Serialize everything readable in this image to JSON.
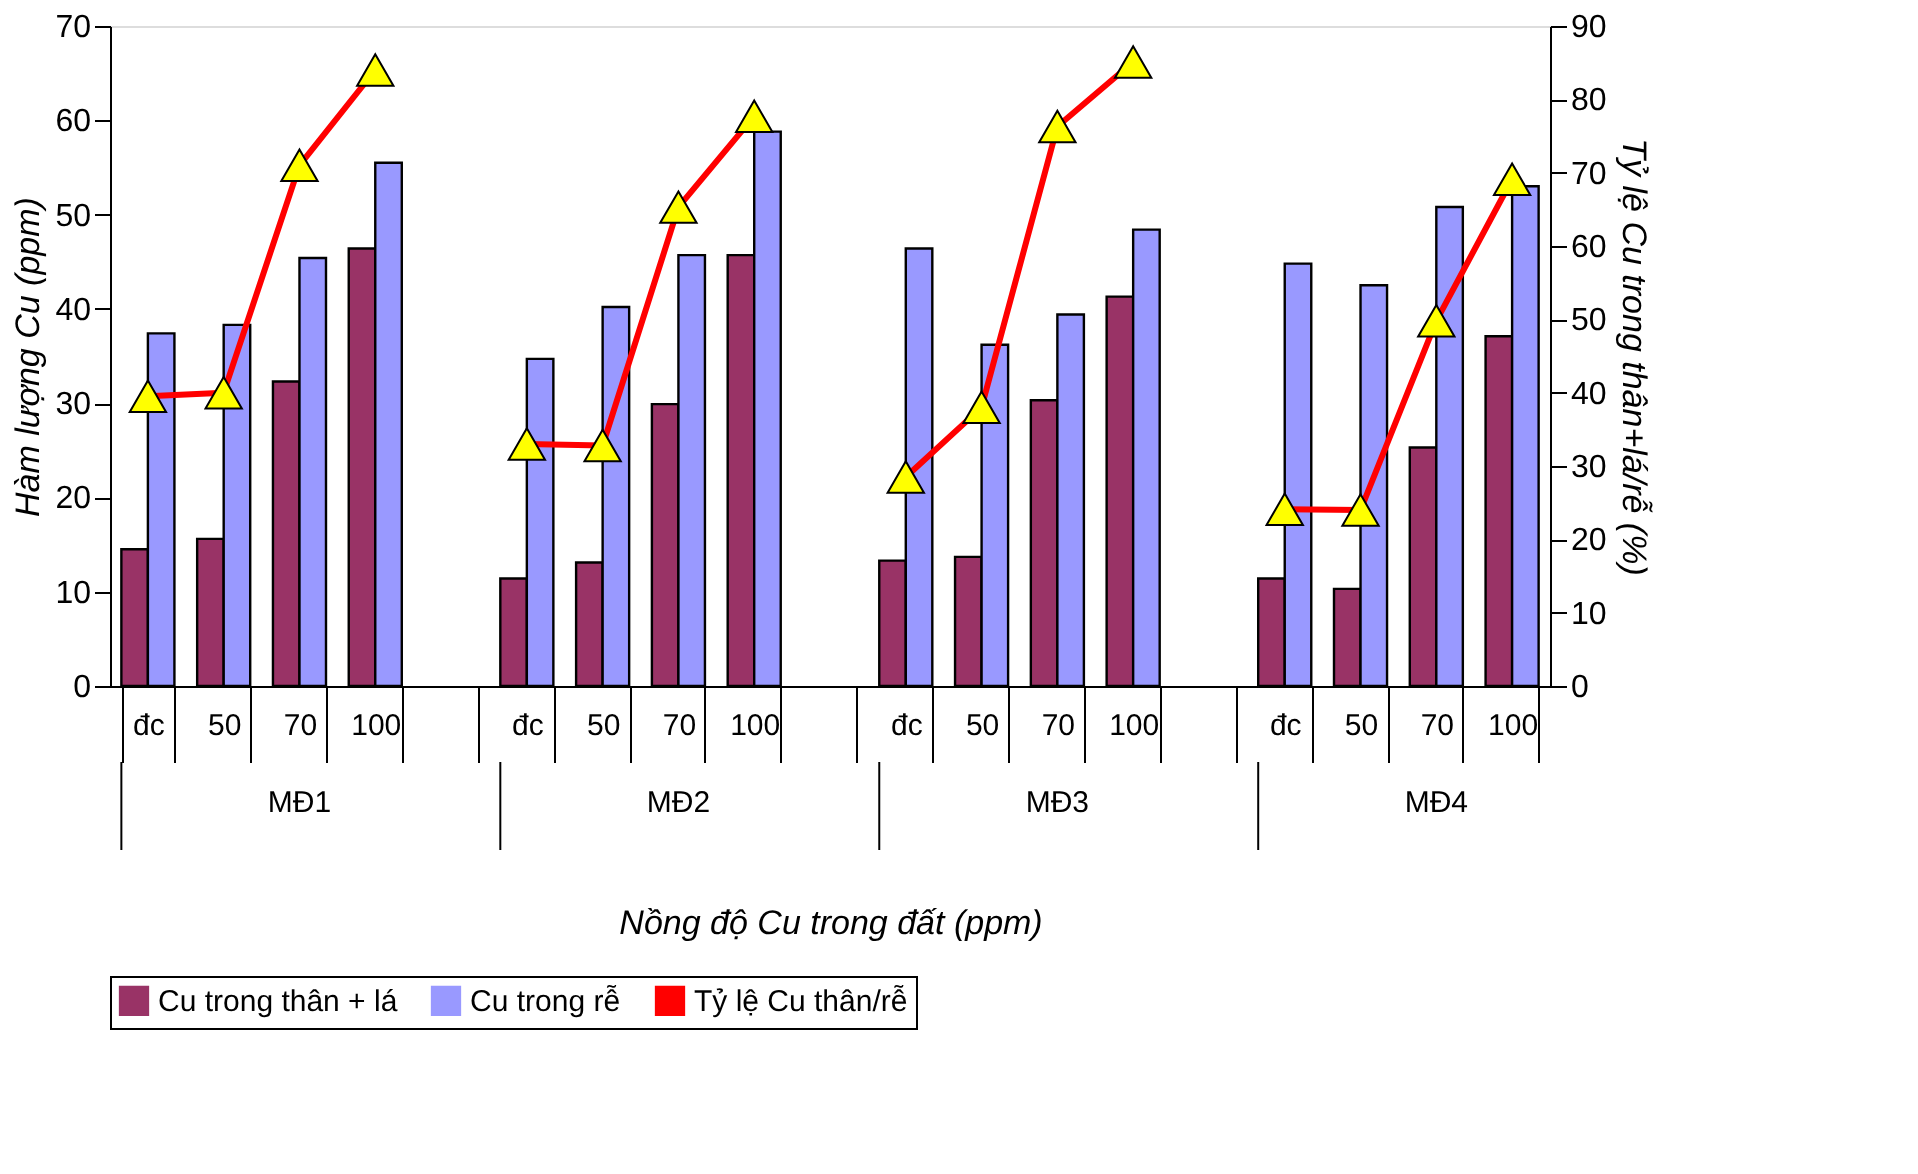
{
  "chart_data": {
    "type": "bar",
    "xlabel": "Nồng độ Cu trong đất (ppm)",
    "ylabel": "Hàm lượng Cu (ppm)",
    "y2label": "Tỷ lệ Cu trong thân+lá/rễ (%)",
    "categories": [
      "đc",
      "50",
      "70",
      "100",
      null,
      "đc",
      "50",
      "70",
      "100",
      null,
      "đc",
      "50",
      "70",
      "100",
      null,
      "đc",
      "50",
      "70",
      "100"
    ],
    "series": [
      {
        "name": "Cu trong thân + lá",
        "color": "#993366",
        "values": [
          14.5,
          15.6,
          32.3,
          46.4,
          null,
          11.4,
          13.1,
          29.9,
          45.7,
          null,
          13.3,
          13.7,
          30.3,
          41.3,
          null,
          11.4,
          10.3,
          25.3,
          37.1
        ]
      },
      {
        "name": "Cu trong rễ",
        "color": "#9999ff",
        "values": [
          37.4,
          38.3,
          45.4,
          55.5,
          null,
          34.7,
          40.2,
          45.7,
          58.8,
          null,
          46.4,
          36.2,
          39.4,
          48.4,
          null,
          44.8,
          42.5,
          50.8,
          53
        ]
      },
      {
        "name": "Tỷ lệ Cu thân/rễ",
        "color": "#ff0000",
        "type": "line",
        "axis": "y2",
        "marker": "triangle",
        "values": [
          39.5,
          40,
          71,
          84,
          null,
          33,
          32.8,
          65.3,
          77.7,
          null,
          28.5,
          38,
          76.3,
          85.1,
          null,
          24.1,
          24,
          49.8,
          69.1
        ]
      }
    ],
    "annotations": [
      "MĐ1",
      "MĐ2",
      "MĐ3",
      "MĐ4"
    ],
    "ylim": [
      0,
      70
    ],
    "yticks": [
      0,
      10,
      20,
      30,
      40,
      50,
      60,
      70
    ],
    "y2lim": [
      0,
      90
    ],
    "y2ticks": [
      0,
      10,
      20,
      30,
      40,
      50,
      60,
      70,
      80,
      90
    ],
    "grid": false,
    "legend": "bottom"
  }
}
